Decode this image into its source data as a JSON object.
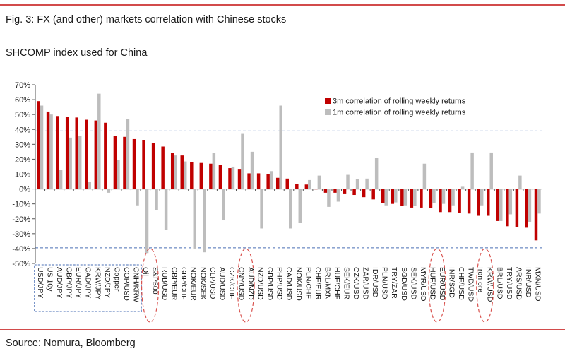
{
  "title": "Fig. 3: FX (and other) markets correlation with Chinese stocks",
  "subtitle": "SHCOMP index used for China",
  "source": "Source: Nomura, Bloomberg",
  "colors": {
    "series1": "#c00000",
    "series2": "#bdbdbd",
    "reference_line": "#4a6fb5",
    "highlight": "#d9534f",
    "rule": "#d24b4b"
  },
  "chart_data": {
    "type": "bar",
    "ylim": [
      -50,
      70
    ],
    "yticks": [
      70,
      60,
      50,
      40,
      30,
      20,
      10,
      0,
      -10,
      -20,
      -30,
      -40,
      -50
    ],
    "ytick_labels": [
      "70%",
      "60%",
      "50%",
      "40%",
      "30%",
      "20%",
      "10%",
      "0%",
      "-10%",
      "-20%",
      "-30%",
      "-40%",
      "-50%"
    ],
    "reference_lines": [
      39,
      -39.5
    ],
    "legend_position": "top-right",
    "categories": [
      "USD/JPY",
      "US 10y",
      "AUD/JPY",
      "GBP/JPY",
      "EUR/JPY",
      "CAD/JPY",
      "KRW/JPY",
      "NZD/JPY",
      "Copper",
      "COP/USD",
      "CNH/KRW",
      "Oil",
      "S&P500",
      "RUB/USD",
      "GBP/EUR",
      "GBP/CHF",
      "NOK/EUR",
      "NOK/SEK",
      "CLP/USD",
      "AUD/USD",
      "CZK/CHF",
      "CNY/USD",
      "AUD/NZD",
      "NZD/USD",
      "GBP/USD",
      "PHP/USD",
      "CAD/USD",
      "NOK/USD",
      "PLN/CHF",
      "CHF/EUR",
      "BRL/MXN",
      "HUF/CHF",
      "SEK/EUR",
      "CZK/USD",
      "ZAR/USD",
      "IDR/USD",
      "PLN/USD",
      "TRY/ZAR",
      "SGD/USD",
      "SEK/USD",
      "MYR/USD",
      "HUF/USD",
      "EUR/USD",
      "INR/SGD",
      "CHF/USD",
      "TWD/USD",
      "Iron ore",
      "KRW/USD",
      "BRL/USD",
      "TRY/USD",
      "ARS/USD",
      "INR/USD",
      "MXN/USD"
    ],
    "highlighted": [
      "Oil",
      "S&P500",
      "CNY/USD",
      "AUD/NZD",
      "HUF/USD",
      "EUR/USD",
      "Iron ore",
      "KRW/USD"
    ],
    "series": [
      {
        "name": "3m correlation of rolling weekly returns",
        "values": [
          59,
          52,
          49,
          48.5,
          48,
          46.5,
          46,
          44.5,
          35.5,
          35,
          33.5,
          33,
          31,
          28.5,
          24,
          22.5,
          18,
          17.5,
          17,
          16,
          14,
          13.5,
          10.5,
          10.5,
          10,
          7.5,
          7,
          3.5,
          3,
          0,
          -2.5,
          -2.5,
          -3,
          -4,
          -5.5,
          -7,
          -9.5,
          -10,
          -11.5,
          -12.5,
          -12.5,
          -13,
          -15.5,
          -15.5,
          -16,
          -16.5,
          -18,
          -18,
          -21.5,
          -25,
          -25.5,
          -26,
          -34.5
        ]
      },
      {
        "name": "1m correlation of rolling weekly returns",
        "values": [
          56,
          50,
          13,
          34.5,
          35.5,
          5,
          64,
          -2.5,
          19.5,
          47,
          -11,
          -43,
          -14,
          -27.5,
          22.5,
          18.5,
          -40,
          -42.5,
          24,
          -21,
          15,
          37,
          25,
          -26.5,
          12,
          56,
          -26.5,
          -22.5,
          6,
          9,
          -12,
          -8.5,
          9.5,
          6.5,
          7,
          21,
          -11,
          -9,
          -11,
          -11.5,
          17,
          -9.5,
          -10,
          -11,
          1.5,
          24.5,
          -11,
          24.5,
          -21.5,
          -17,
          9,
          -22,
          -16.5
        ]
      }
    ]
  }
}
